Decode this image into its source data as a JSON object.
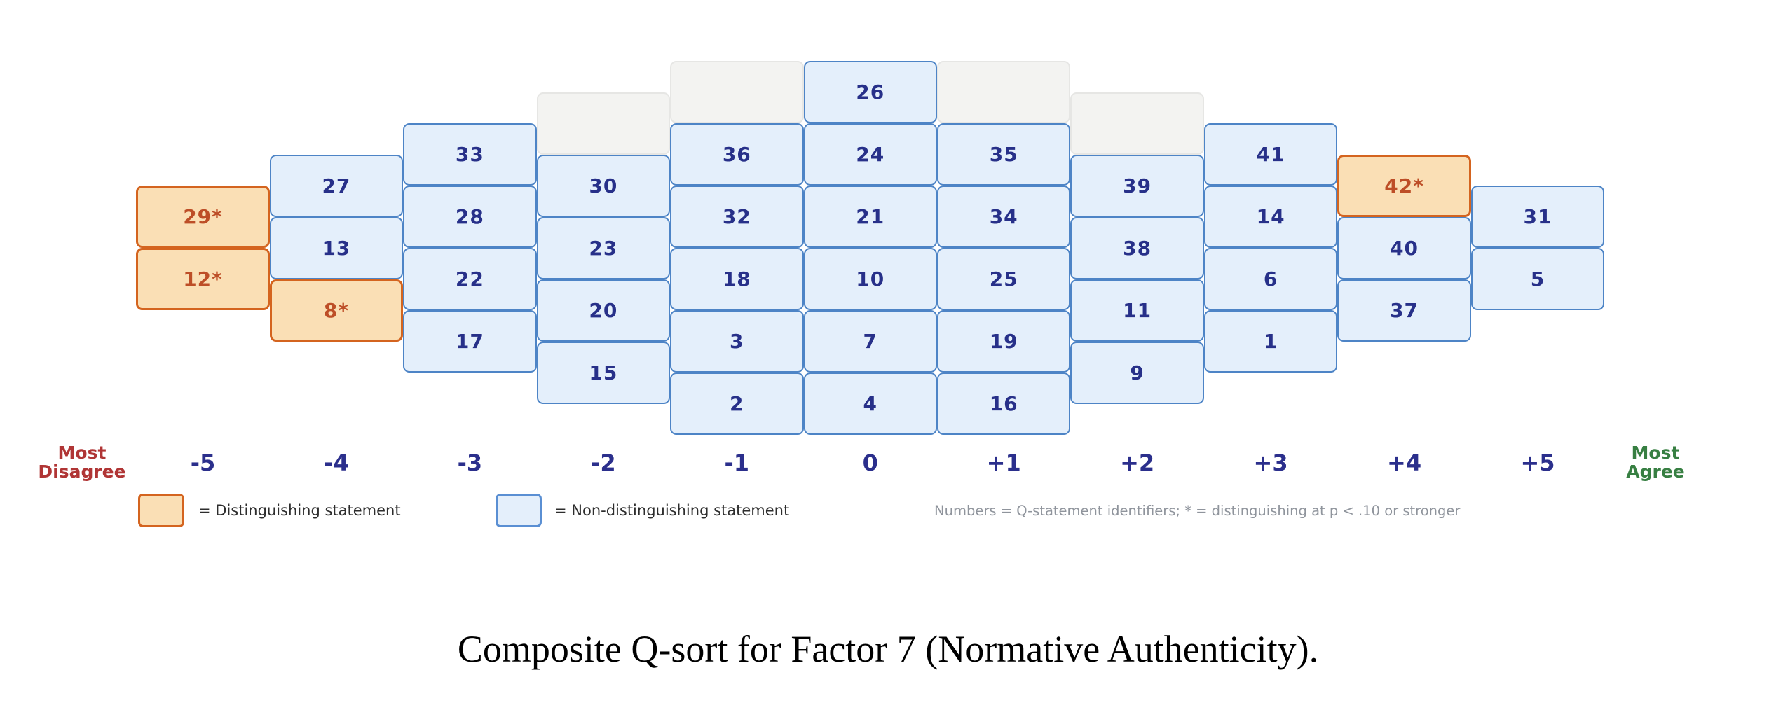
{
  "chart_data": {
    "type": "table",
    "title": "Composite Q-sort for Factor 7 (Normative Authenticity).",
    "description": "Q-sort pyramid grid: columns from -5 (Most Disagree) to +5 (Most Agree); each column stacks Q-statement identifier cards; gray cells are unused slots.",
    "x_axis": {
      "categories": [
        "-5",
        "-4",
        "-3",
        "-2",
        "-1",
        "0",
        "+1",
        "+2",
        "+3",
        "+4",
        "+5"
      ],
      "left_label": {
        "line1": "Most",
        "line2": "Disagree"
      },
      "right_label": {
        "line1": "Most",
        "line2": "Agree"
      }
    },
    "columns": [
      {
        "value": "-5",
        "empty_slots": 0,
        "statements": [
          {
            "id": "29*",
            "distinguishing": true
          },
          {
            "id": "12*",
            "distinguishing": true
          }
        ]
      },
      {
        "value": "-4",
        "empty_slots": 0,
        "statements": [
          {
            "id": "27",
            "distinguishing": false
          },
          {
            "id": "13",
            "distinguishing": false
          },
          {
            "id": "8*",
            "distinguishing": true
          }
        ]
      },
      {
        "value": "-3",
        "empty_slots": 0,
        "statements": [
          {
            "id": "33",
            "distinguishing": false
          },
          {
            "id": "28",
            "distinguishing": false
          },
          {
            "id": "22",
            "distinguishing": false
          },
          {
            "id": "17",
            "distinguishing": false
          }
        ]
      },
      {
        "value": "-2",
        "empty_slots": 1,
        "statements": [
          {
            "id": "30",
            "distinguishing": false
          },
          {
            "id": "23",
            "distinguishing": false
          },
          {
            "id": "20",
            "distinguishing": false
          },
          {
            "id": "15",
            "distinguishing": false
          }
        ]
      },
      {
        "value": "-1",
        "empty_slots": 1,
        "statements": [
          {
            "id": "36",
            "distinguishing": false
          },
          {
            "id": "32",
            "distinguishing": false
          },
          {
            "id": "18",
            "distinguishing": false
          },
          {
            "id": "3",
            "distinguishing": false
          },
          {
            "id": "2",
            "distinguishing": false
          }
        ]
      },
      {
        "value": "0",
        "empty_slots": 0,
        "statements": [
          {
            "id": "26",
            "distinguishing": false
          },
          {
            "id": "24",
            "distinguishing": false
          },
          {
            "id": "21",
            "distinguishing": false
          },
          {
            "id": "10",
            "distinguishing": false
          },
          {
            "id": "7",
            "distinguishing": false
          },
          {
            "id": "4",
            "distinguishing": false
          }
        ]
      },
      {
        "value": "+1",
        "empty_slots": 1,
        "statements": [
          {
            "id": "35",
            "distinguishing": false
          },
          {
            "id": "34",
            "distinguishing": false
          },
          {
            "id": "25",
            "distinguishing": false
          },
          {
            "id": "19",
            "distinguishing": false
          },
          {
            "id": "16",
            "distinguishing": false
          }
        ]
      },
      {
        "value": "+2",
        "empty_slots": 1,
        "statements": [
          {
            "id": "39",
            "distinguishing": false
          },
          {
            "id": "38",
            "distinguishing": false
          },
          {
            "id": "11",
            "distinguishing": false
          },
          {
            "id": "9",
            "distinguishing": false
          }
        ]
      },
      {
        "value": "+3",
        "empty_slots": 0,
        "statements": [
          {
            "id": "41",
            "distinguishing": false
          },
          {
            "id": "14",
            "distinguishing": false
          },
          {
            "id": "6",
            "distinguishing": false
          },
          {
            "id": "1",
            "distinguishing": false
          }
        ]
      },
      {
        "value": "+4",
        "empty_slots": 0,
        "statements": [
          {
            "id": "42*",
            "distinguishing": true
          },
          {
            "id": "40",
            "distinguishing": false
          },
          {
            "id": "37",
            "distinguishing": false
          }
        ]
      },
      {
        "value": "+5",
        "empty_slots": 0,
        "statements": [
          {
            "id": "31",
            "distinguishing": false
          },
          {
            "id": "5",
            "distinguishing": false
          }
        ]
      }
    ]
  },
  "legend": {
    "distinguishing_label": "= Distinguishing statement",
    "non_distinguishing_label": "= Non-distinguishing statement",
    "note": "Numbers = Q-statement identifiers; * = distinguishing at p < .10 or stronger"
  },
  "colors": {
    "distinguishing_fill": "#fadfb5",
    "distinguishing_border": "#d4641f",
    "distinguishing_text": "#bd4e27",
    "non_distinguishing_fill": "#e4effb",
    "non_distinguishing_border": "#4d84c6",
    "non_distinguishing_text": "#273089",
    "empty_fill": "#f3f3f1",
    "empty_border": "#e6e6e4",
    "axis_tick_text": "#2b2f8c",
    "most_disagree_text": "#b03535",
    "most_agree_text": "#377f42",
    "legend_text": "#2d2d2d",
    "note_text": "#8f949c",
    "caption_text": "#000000"
  }
}
